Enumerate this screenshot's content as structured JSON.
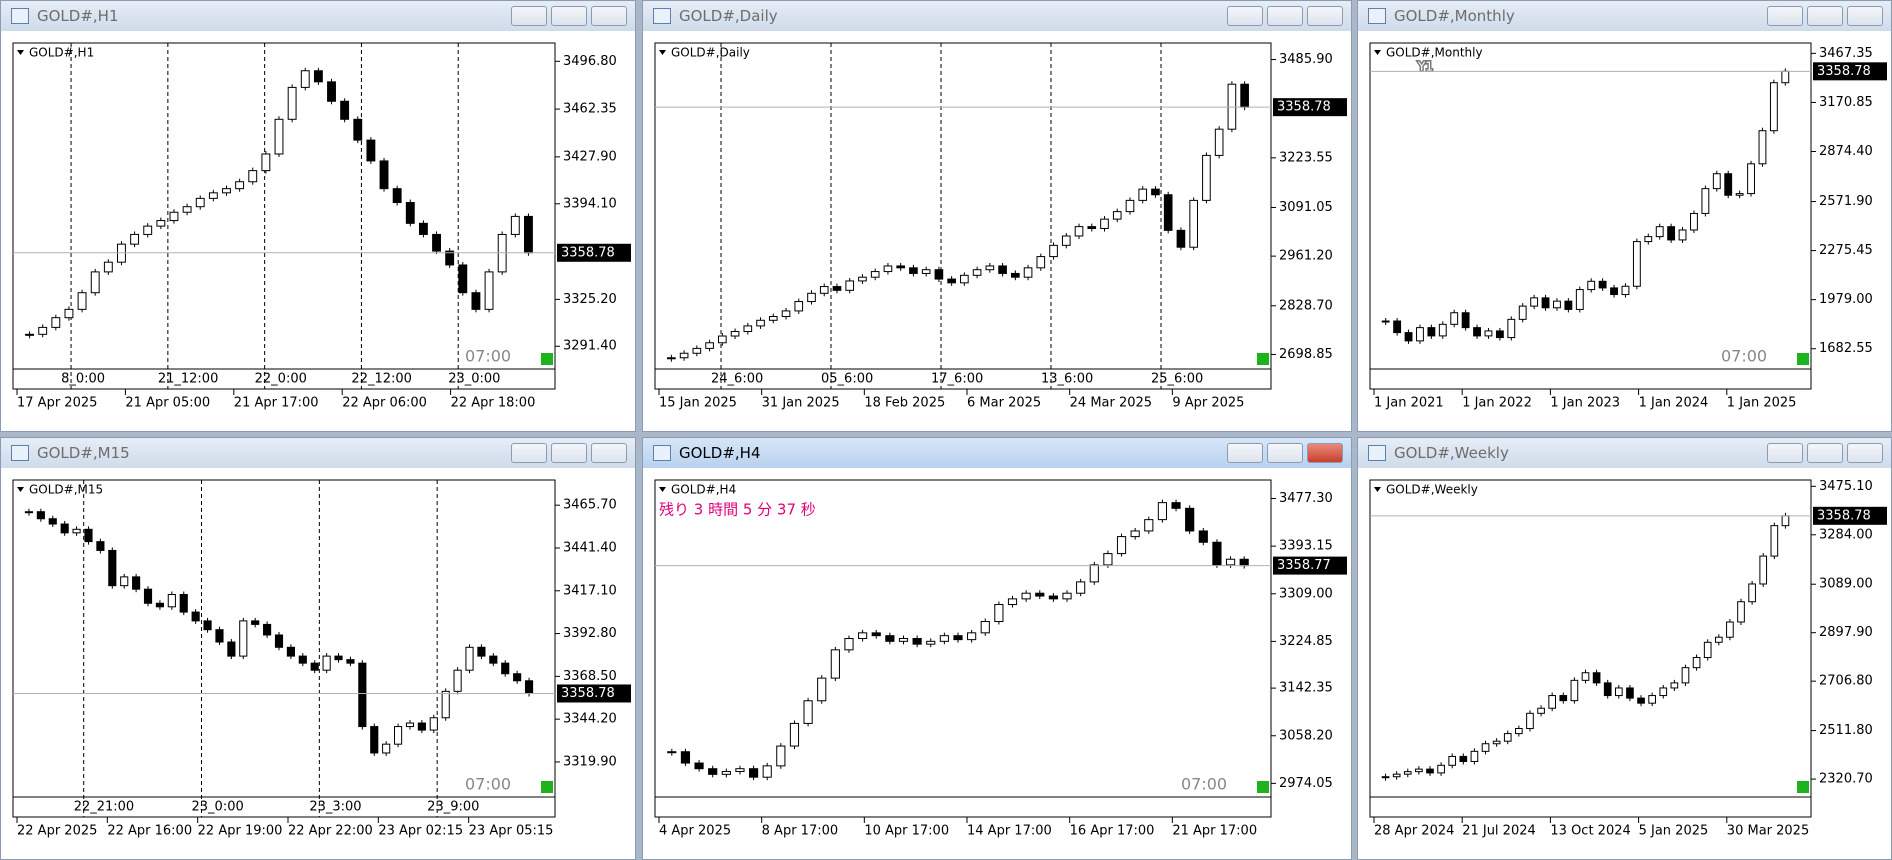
{
  "windows": [
    {
      "title": "GOLD#,H1",
      "ylim": [
        3275,
        3510
      ],
      "price_ticks": [
        {
          "value": 3496.8,
          "label": "3496.80"
        },
        3462.35,
        {
          "value": 3427.9,
          "label": "3427.90"
        },
        {
          "value": 3394.1,
          "label": "3394.10"
        },
        {
          "value": 3325.2,
          "label": "3325.20"
        },
        {
          "value": 3291.4,
          "label": "3291.40"
        }
      ],
      "current_price": 3358.78,
      "separator_labels": [
        "8_0:00",
        "21_12:00",
        "22_0:00",
        "22_12:00",
        "23_0:00"
      ],
      "time_labels": [
        "17 Apr 2025",
        "21 Apr 05:00",
        "21 Apr 17:00",
        "22 Apr 06:00",
        "22 Apr 18:00"
      ],
      "marker": "07:00",
      "closes": [
        3300,
        3305,
        3312,
        3318,
        3330,
        3345,
        3352,
        3365,
        3372,
        3378,
        3382,
        3388,
        3392,
        3398,
        3402,
        3405,
        3410,
        3418,
        3430,
        3455,
        3478,
        3490,
        3482,
        3468,
        3455,
        3440,
        3425,
        3405,
        3395,
        3380,
        3372,
        3360,
        3350,
        3330,
        3318,
        3345,
        3372,
        3385,
        3358.78
      ]
    },
    {
      "title": "GOLD#,Daily",
      "ylim": [
        2660,
        3530
      ],
      "price_ticks": [
        {
          "value": 3485.9,
          "label": "3485.90"
        },
        3223.55,
        3091.05,
        {
          "value": 2961.2,
          "label": "2961.20"
        },
        {
          "value": 2828.7,
          "label": "2828.70"
        },
        2698.85
      ],
      "current_price": 3358.78,
      "separator_labels": [
        "24_6:00",
        "05_6:00",
        "17_6:00",
        "13_6:00",
        "25_6:00"
      ],
      "time_labels": [
        "15 Jan 2025",
        "31 Jan 2025",
        "18 Feb 2025",
        "6 Mar 2025",
        "24 Mar 2025",
        "9 Apr 2025"
      ],
      "closes": [
        2690,
        2702,
        2715,
        2730,
        2748,
        2760,
        2775,
        2790,
        2800,
        2815,
        2840,
        2862,
        2880,
        2870,
        2895,
        2905,
        2920,
        2935,
        2930,
        2915,
        2925,
        2900,
        2890,
        2910,
        2925,
        2935,
        2915,
        2905,
        2930,
        2960,
        2990,
        3015,
        3040,
        3035,
        3060,
        3080,
        3110,
        3140,
        3125,
        3030,
        2985,
        3110,
        3230,
        3300,
        3420,
        3358.78
      ]
    },
    {
      "title": "GOLD#,Monthly",
      "ylim": [
        1560,
        3530
      ],
      "button": "Y1",
      "price_ticks": [
        3467.35,
        3170.85,
        {
          "value": 2874.4,
          "label": "2874.40"
        },
        {
          "value": 2571.9,
          "label": "2571.90"
        },
        2275.45,
        {
          "value": 1979,
          "label": "1979.00"
        },
        1682.55
      ],
      "current_price": 3358.78,
      "time_labels": [
        "1 Jan 2021",
        "1 Jan 2022",
        "1 Jan 2023",
        "1 Jan 2024",
        "1 Jan 2025"
      ],
      "marker": "07:00",
      "closes": [
        1850,
        1780,
        1730,
        1810,
        1760,
        1830,
        1900,
        1810,
        1760,
        1790,
        1750,
        1860,
        1940,
        1990,
        1930,
        1970,
        1920,
        2040,
        2090,
        2050,
        2010,
        2060,
        2330,
        2360,
        2420,
        2340,
        2400,
        2500,
        2650,
        2740,
        2610,
        2620,
        2800,
        3000,
        3290,
        3358.78
      ]
    },
    {
      "title": "GOLD#,M15",
      "ylim": [
        3300,
        3480
      ],
      "price_ticks": [
        {
          "value": 3465.7,
          "label": "3465.70"
        },
        {
          "value": 3441.4,
          "label": "3441.40"
        },
        {
          "value": 3417.1,
          "label": "3417.10"
        },
        {
          "value": 3392.8,
          "label": "3392.80"
        },
        {
          "value": 3368.5,
          "label": "3368.50"
        },
        {
          "value": 3344.2,
          "label": "3344.20"
        },
        {
          "value": 3319.9,
          "label": "3319.90"
        }
      ],
      "current_price": 3358.78,
      "separator_labels": [
        "22_21:00",
        "23_0:00",
        "23_3:00",
        "23_9:00"
      ],
      "time_labels": [
        "22 Apr 2025",
        "22 Apr 16:00",
        "22 Apr 19:00",
        "22 Apr 22:00",
        "23 Apr 02:15",
        "23 Apr 05:15"
      ],
      "marker": "07:00",
      "closes": [
        3462,
        3458,
        3455,
        3450,
        3452,
        3445,
        3440,
        3420,
        3425,
        3418,
        3410,
        3408,
        3415,
        3405,
        3400,
        3395,
        3388,
        3380,
        3400,
        3398,
        3392,
        3385,
        3380,
        3376,
        3372,
        3380,
        3378,
        3376,
        3340,
        3325,
        3330,
        3340,
        3342,
        3338,
        3345,
        3360,
        3372,
        3385,
        3380,
        3376,
        3370,
        3366,
        3358.78
      ]
    },
    {
      "title": "GOLD#,H4",
      "ylim": [
        2950,
        3510
      ],
      "active": true,
      "countdown": "残り 3 時間 5 分 37 秒",
      "price_ticks": [
        {
          "value": 3477.3,
          "label": "3477.30"
        },
        3393.15,
        {
          "value": 3309,
          "label": "3309.00"
        },
        3224.85,
        3142.35,
        {
          "value": 3058.2,
          "label": "3058.20"
        },
        2974.05
      ],
      "current_price": 3358.77,
      "time_labels": [
        "4 Apr 2025",
        "8 Apr 17:00",
        "10 Apr 17:00",
        "14 Apr 17:00",
        "16 Apr 17:00",
        "21 Apr 17:00"
      ],
      "marker": "07:00",
      "closes": [
        3030,
        3010,
        3000,
        2990,
        2995,
        3000,
        2985,
        3005,
        3040,
        3080,
        3120,
        3160,
        3210,
        3230,
        3240,
        3235,
        3225,
        3230,
        3220,
        3225,
        3235,
        3228,
        3240,
        3260,
        3290,
        3300,
        3310,
        3305,
        3300,
        3310,
        3330,
        3360,
        3380,
        3410,
        3420,
        3440,
        3470,
        3460,
        3420,
        3400,
        3360,
        3370,
        3358.77
      ]
    },
    {
      "title": "GOLD#,Weekly",
      "ylim": [
        2250,
        3500
      ],
      "price_ticks": [
        {
          "value": 3475.1,
          "label": "3475.10"
        },
        {
          "value": 3284,
          "label": "3284.00"
        },
        {
          "value": 3089,
          "label": "3089.00"
        },
        {
          "value": 2897.9,
          "label": "2897.90"
        },
        {
          "value": 2706.8,
          "label": "2706.80"
        },
        {
          "value": 2511.8,
          "label": "2511.80"
        },
        {
          "value": 2320.7,
          "label": "2320.70"
        }
      ],
      "current_price": 3358.78,
      "time_labels": [
        "28 Apr 2024",
        "21 Jul 2024",
        "13 Oct 2024",
        "5 Jan 2025",
        "30 Mar 2025"
      ],
      "closes": [
        2330,
        2340,
        2350,
        2360,
        2345,
        2375,
        2410,
        2390,
        2430,
        2460,
        2470,
        2500,
        2520,
        2580,
        2600,
        2650,
        2630,
        2710,
        2740,
        2700,
        2650,
        2680,
        2640,
        2620,
        2650,
        2680,
        2700,
        2760,
        2800,
        2860,
        2880,
        2940,
        3020,
        3090,
        3200,
        3320,
        3358.78
      ]
    }
  ]
}
